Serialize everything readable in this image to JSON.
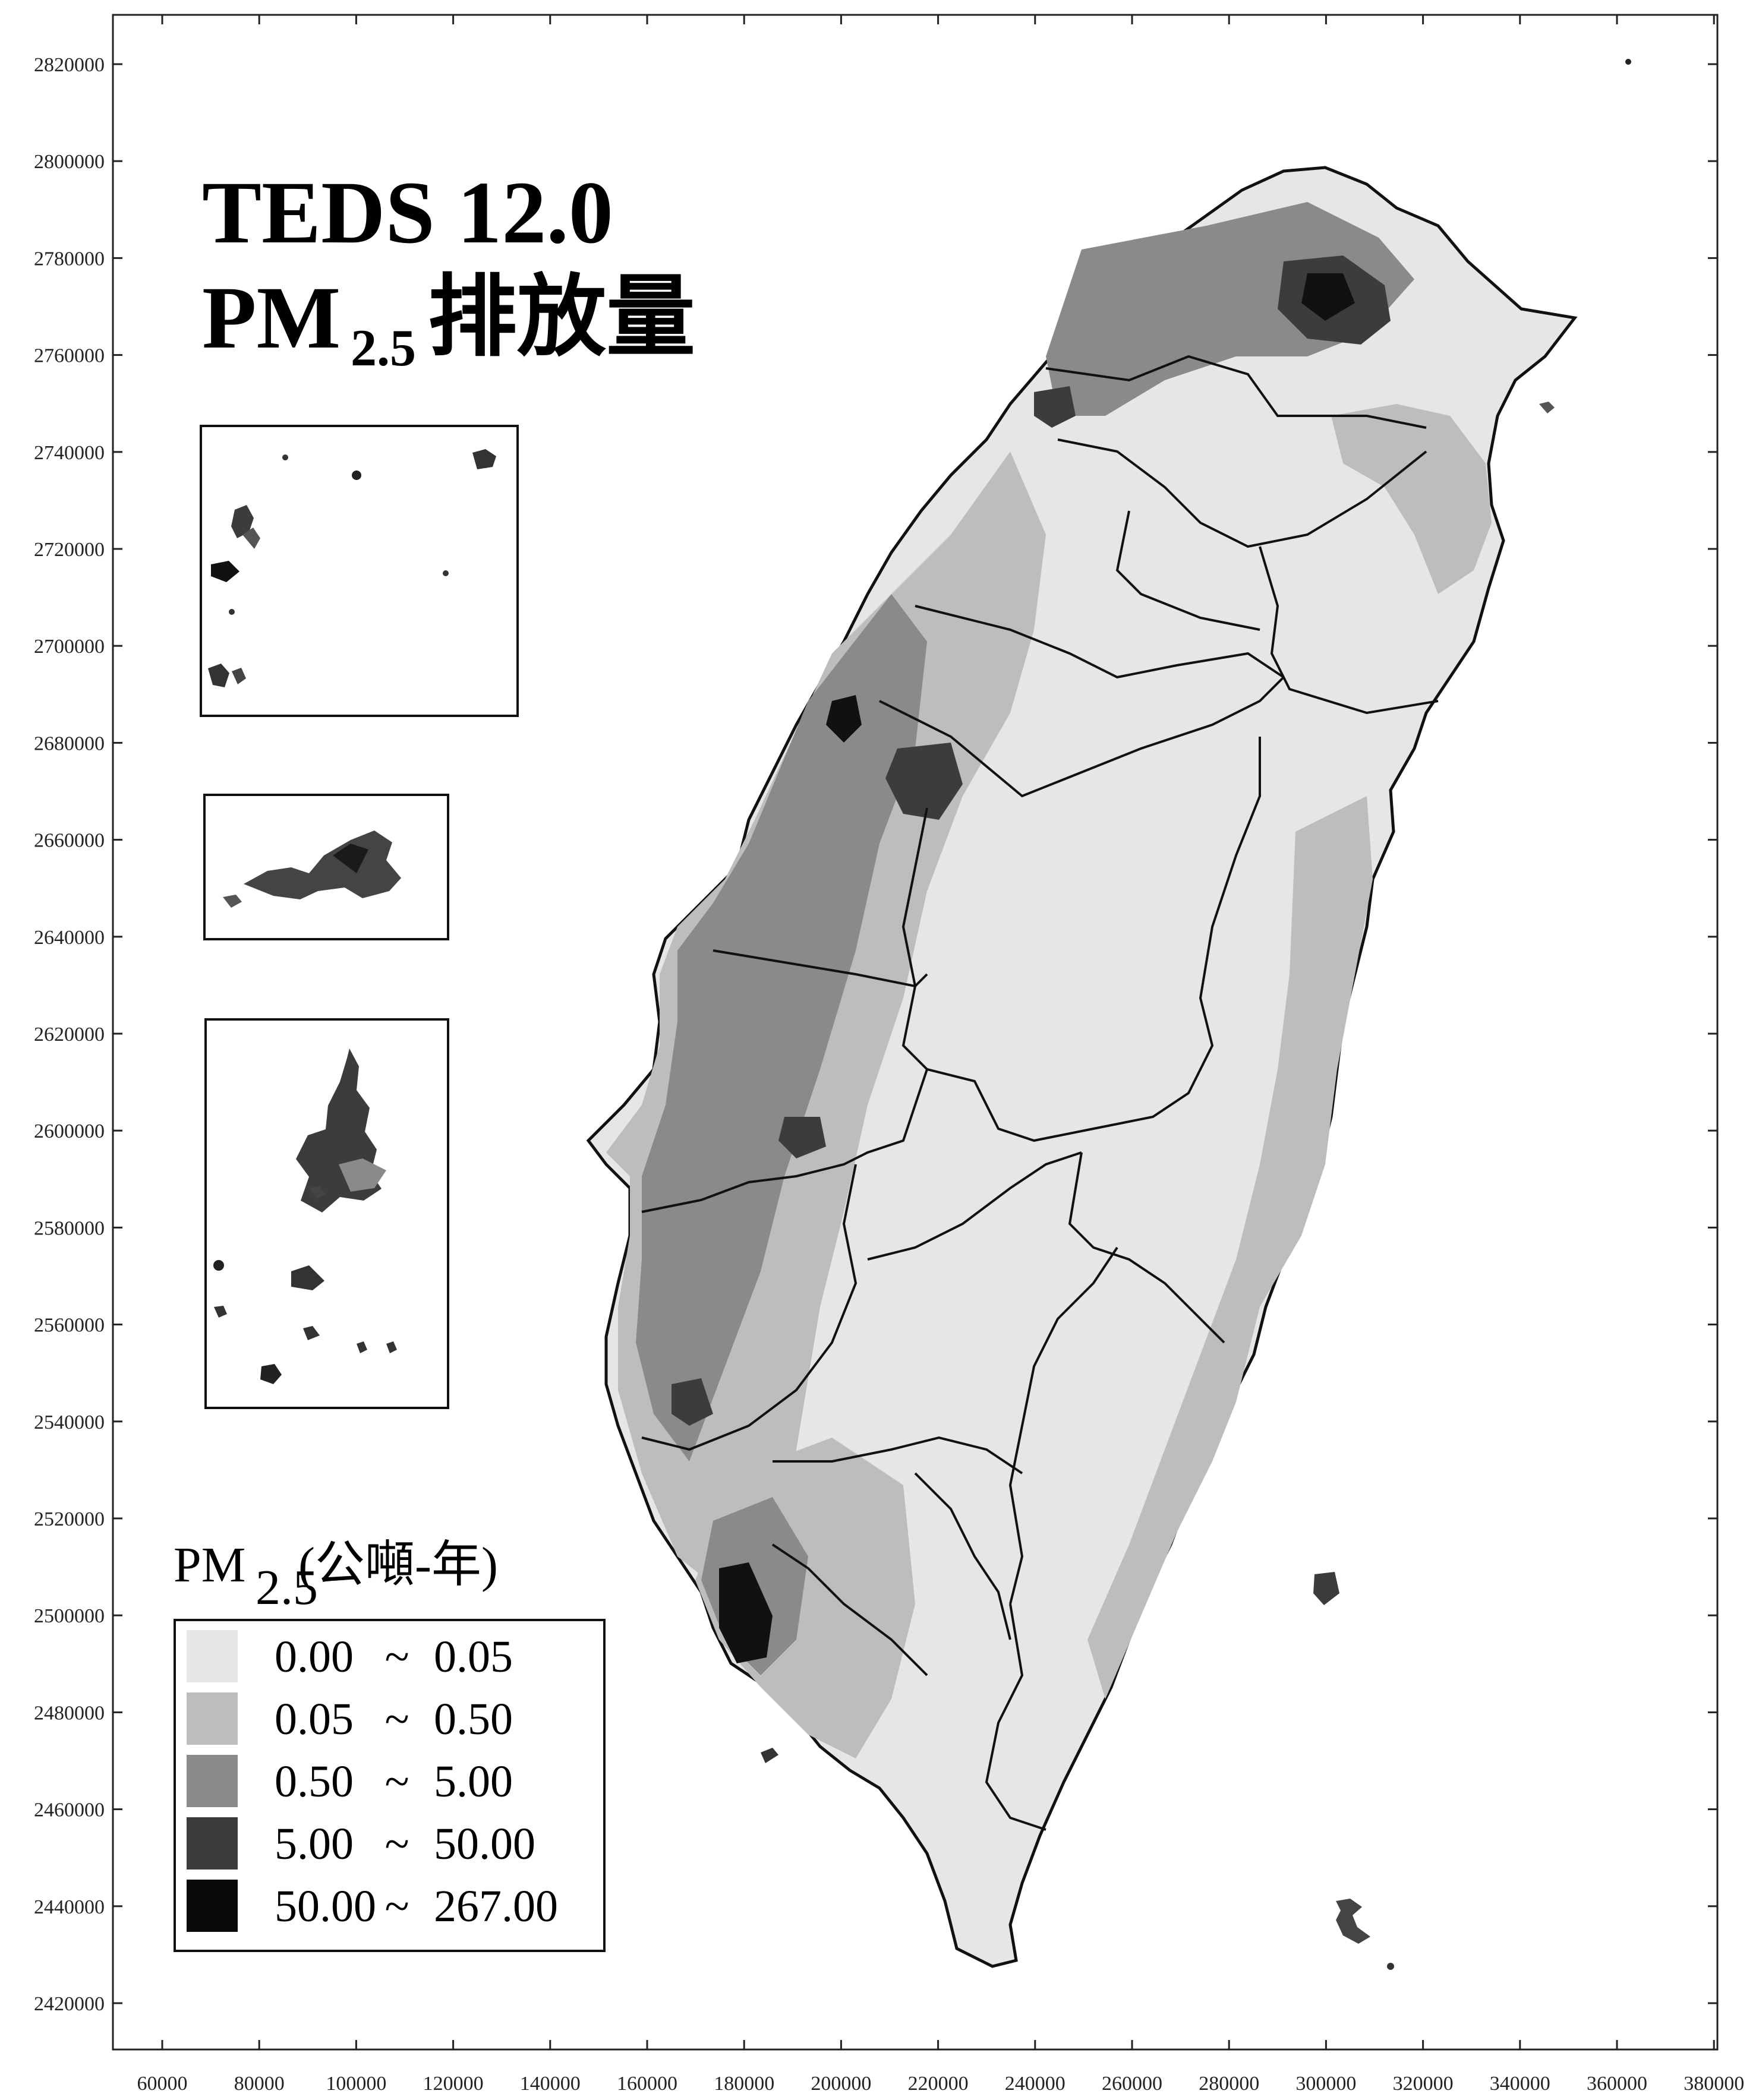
{
  "map": {
    "title_line1": "TEDS 12.0",
    "title_line2_main": "PM",
    "title_line2_sub": "2.5",
    "title_line2_rest": "排放量",
    "x_ticks": [
      "60000",
      "80000",
      "100000",
      "120000",
      "140000",
      "160000",
      "180000",
      "200000",
      "220000",
      "240000",
      "260000",
      "280000",
      "300000",
      "320000",
      "340000",
      "360000",
      "380000"
    ],
    "y_ticks": [
      "2820000",
      "2800000",
      "2780000",
      "2760000",
      "2740000",
      "2720000",
      "2700000",
      "2680000",
      "2660000",
      "2640000",
      "2620000",
      "2600000",
      "2580000",
      "2560000",
      "2540000",
      "2520000",
      "2500000",
      "2480000",
      "2460000",
      "2440000",
      "2420000"
    ],
    "colors": {
      "c0": "#e6e6e6",
      "c1": "#bdbdbd",
      "c2": "#8a8a8a",
      "c3": "#3c3c3c",
      "c4": "#0a0a0a",
      "border": "#111111"
    },
    "legend": {
      "title_main": "PM",
      "title_sub": "2.5",
      "title_rest": "(公噸-年)",
      "classes": [
        {
          "low": "0.00",
          "sep": "~",
          "high": "0.05",
          "color": "#e6e6e6"
        },
        {
          "low": "0.05",
          "sep": "~",
          "high": "0.50",
          "color": "#bdbdbd"
        },
        {
          "low": "0.50",
          "sep": "~",
          "high": "5.00",
          "color": "#8a8a8a"
        },
        {
          "low": "5.00",
          "sep": "~",
          "high": "50.00",
          "color": "#3c3c3c"
        },
        {
          "low": "50.00",
          "sep": "~",
          "high": "267.00",
          "color": "#0a0a0a"
        }
      ]
    }
  }
}
